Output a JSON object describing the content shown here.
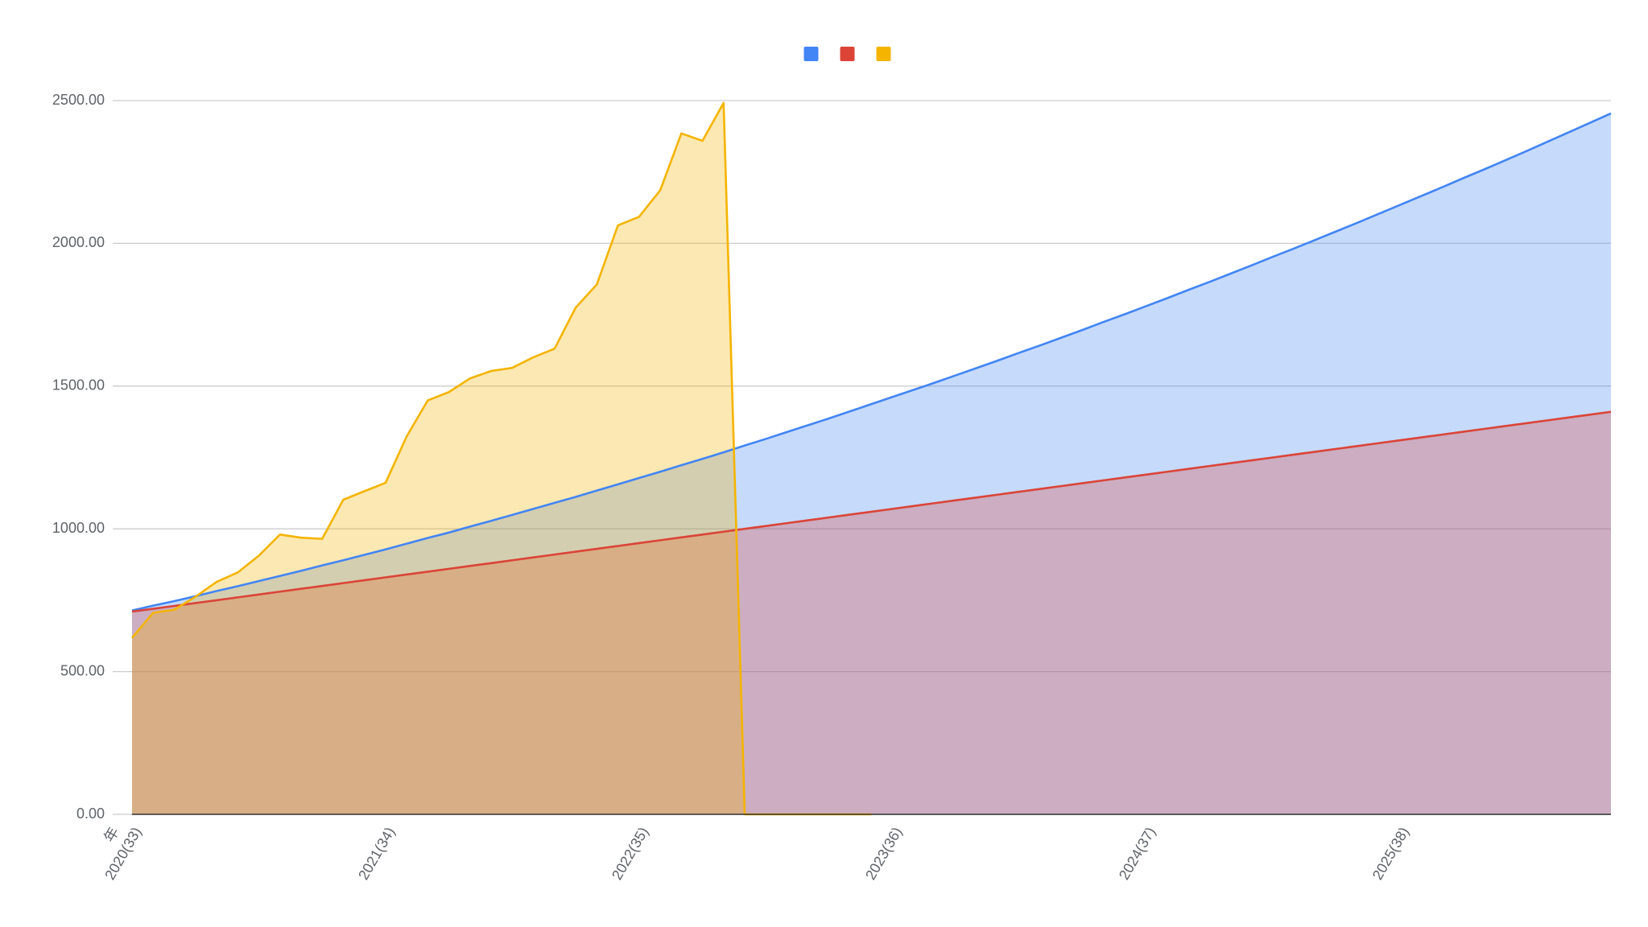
{
  "chart_data": {
    "type": "area",
    "x_label": "年",
    "categories": [
      "2020(33)",
      null,
      null,
      null,
      null,
      null,
      null,
      null,
      null,
      null,
      null,
      null,
      "2021(34)",
      null,
      null,
      null,
      null,
      null,
      null,
      null,
      null,
      null,
      null,
      null,
      "2022(35)",
      null,
      null,
      null,
      null,
      null,
      null,
      null,
      null,
      null,
      null,
      null,
      "2023(36)",
      null,
      null,
      null,
      null,
      null,
      null,
      null,
      null,
      null,
      null,
      null,
      "2024(37)",
      null,
      null,
      null,
      null,
      null,
      null,
      null,
      null,
      null,
      null,
      null,
      "2025(38)",
      null,
      null,
      null,
      null,
      null,
      null,
      null,
      null,
      null,
      null
    ],
    "series": [
      {
        "color": "#4285f4",
        "values": [
          714,
          731,
          747,
          764,
          782,
          799,
          817,
          835,
          853,
          872,
          890,
          909,
          928,
          948,
          968,
          987,
          1008,
          1028,
          1049,
          1070,
          1091,
          1112,
          1134,
          1156,
          1178,
          1200,
          1223,
          1245,
          1268,
          1292,
          1315,
          1339,
          1363,
          1387,
          1412,
          1437,
          1462,
          1487,
          1512,
          1538,
          1564,
          1590,
          1617,
          1643,
          1670,
          1697,
          1725,
          1752,
          1780,
          1808,
          1837,
          1865,
          1894,
          1923,
          1953,
          1982,
          2012,
          2042,
          2072,
          2103,
          2134,
          2165,
          2196,
          2228,
          2259,
          2291,
          2323,
          2356,
          2389,
          2422,
          2455
        ]
      },
      {
        "color": "#db4437",
        "values": [
          710,
          720,
          730,
          740,
          750,
          760,
          770,
          780,
          790,
          800,
          810,
          820,
          830,
          840,
          850,
          860,
          870,
          880,
          890,
          900,
          910,
          920,
          930,
          940,
          950,
          960,
          970,
          980,
          990,
          1000,
          1010,
          1020,
          1030,
          1040,
          1050,
          1060,
          1070,
          1080,
          1090,
          1100,
          1110,
          1120,
          1130,
          1140,
          1150,
          1160,
          1170,
          1180,
          1190,
          1200,
          1210,
          1220,
          1230,
          1240,
          1250,
          1260,
          1270,
          1280,
          1290,
          1300,
          1310,
          1320,
          1330,
          1340,
          1350,
          1360,
          1370,
          1380,
          1390,
          1400,
          1410
        ]
      },
      {
        "color": "#f4b400",
        "values": [
          618,
          706,
          717,
          762,
          814,
          847,
          906,
          980,
          969,
          965,
          1102,
          1132,
          1161,
          1324,
          1450,
          1479,
          1527,
          1553,
          1564,
          1601,
          1631,
          1775,
          1856,
          2063,
          2093,
          2186,
          2385,
          2359,
          2492,
          0,
          0,
          0,
          0,
          0,
          0,
          0,
          null,
          null,
          null,
          null,
          null,
          null,
          null,
          null,
          null,
          null,
          null,
          null,
          null,
          null,
          null,
          null,
          null,
          null,
          null,
          null,
          null,
          null,
          null,
          null,
          null,
          null,
          null,
          null,
          null,
          null,
          null,
          null,
          null,
          null,
          null
        ]
      }
    ],
    "ylim": [
      0,
      2500
    ],
    "yticks": [
      {
        "value": 0,
        "label": "0.00"
      },
      {
        "value": 500,
        "label": "500.00"
      },
      {
        "value": 1000,
        "label": "1000.00"
      },
      {
        "value": 1500,
        "label": "1500.00"
      },
      {
        "value": 2000,
        "label": "2000.00"
      },
      {
        "value": 2500,
        "label": "2500.00"
      }
    ],
    "grid": true,
    "legend": "top",
    "fill_opacity": 0.3
  }
}
